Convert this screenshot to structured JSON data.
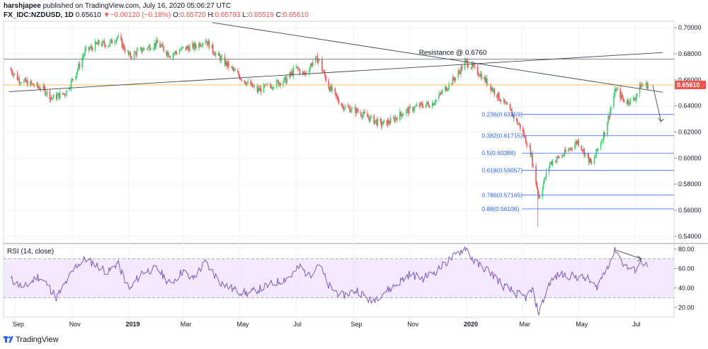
{
  "header": {
    "publisher": "harshjapee",
    "published_text": "published on TradingView.com, July 16, 2020 05:06:27 UTC",
    "symbol": "FX_IDC:NZDUSD, 1D",
    "last": "0.65610",
    "change": "▼−0.00120 (−0.18%)",
    "o_label": "O:",
    "o": "0.65720",
    "h_label": "H:",
    "h": "0.65783",
    "l_label": "L:",
    "l": "0.65519",
    "c_label": "C:",
    "c": "0.65610"
  },
  "footer": {
    "brand": "TradingView",
    "logo_icon": "tradingview-logo-icon"
  },
  "colors": {
    "up": "#26a69a",
    "up_bright": "#3cd070",
    "down": "#ef5350",
    "grid": "#f0f3fa",
    "rsi": "#7e57c2",
    "rsi_band": "#ede1fb",
    "fib": "#2962ff",
    "price_line": "#f5a623",
    "last_badge": "#ef5350"
  },
  "chart_data": [
    {
      "type": "candlestick",
      "title": "",
      "y_axis_labels": [
        "0.70000",
        "0.68000",
        "0.66000",
        "0.64000",
        "0.62000",
        "0.60000",
        "0.58000",
        "0.56000",
        "0.54000"
      ],
      "ylim": [
        0.535,
        0.705
      ],
      "x_axis_labels": [
        "Sep",
        "Nov",
        "2019",
        "Mar",
        "May",
        "Jul",
        "Sep",
        "Nov",
        "2020",
        "Mar",
        "May",
        "Jul"
      ],
      "last_price": "0.65610",
      "price_path": [
        [
          "2018-08-25",
          0.669
        ],
        [
          "2018-09-05",
          0.66
        ],
        [
          "2018-09-20",
          0.656
        ],
        [
          "2018-10-01",
          0.653
        ],
        [
          "2018-10-10",
          0.646
        ],
        [
          "2018-10-25",
          0.65
        ],
        [
          "2018-11-05",
          0.665
        ],
        [
          "2018-11-15",
          0.682
        ],
        [
          "2018-11-30",
          0.688
        ],
        [
          "2018-12-10",
          0.687
        ],
        [
          "2018-12-20",
          0.693
        ],
        [
          "2019-01-02",
          0.678
        ],
        [
          "2019-01-15",
          0.683
        ],
        [
          "2019-02-01",
          0.688
        ],
        [
          "2019-02-15",
          0.679
        ],
        [
          "2019-03-01",
          0.684
        ],
        [
          "2019-03-15",
          0.686
        ],
        [
          "2019-03-25",
          0.691
        ],
        [
          "2019-04-05",
          0.68
        ],
        [
          "2019-04-20",
          0.67
        ],
        [
          "2019-05-05",
          0.66
        ],
        [
          "2019-05-20",
          0.652
        ],
        [
          "2019-06-05",
          0.656
        ],
        [
          "2019-06-20",
          0.66
        ],
        [
          "2019-07-01",
          0.669
        ],
        [
          "2019-07-10",
          0.664
        ],
        [
          "2019-07-20",
          0.675
        ],
        [
          "2019-07-25",
          0.676
        ],
        [
          "2019-08-05",
          0.655
        ],
        [
          "2019-08-20",
          0.64
        ],
        [
          "2019-09-05",
          0.636
        ],
        [
          "2019-09-20",
          0.63
        ],
        [
          "2019-10-01",
          0.626
        ],
        [
          "2019-10-10",
          0.628
        ],
        [
          "2019-10-25",
          0.635
        ],
        [
          "2019-11-10",
          0.64
        ],
        [
          "2019-11-25",
          0.642
        ],
        [
          "2019-12-05",
          0.65
        ],
        [
          "2019-12-20",
          0.662
        ],
        [
          "2019-12-31",
          0.674
        ],
        [
          "2020-01-15",
          0.665
        ],
        [
          "2020-01-31",
          0.651
        ],
        [
          "2020-02-15",
          0.638
        ],
        [
          "2020-02-28",
          0.624
        ],
        [
          "2020-03-10",
          0.605
        ],
        [
          "2020-03-19",
          0.57
        ],
        [
          "2020-03-31",
          0.596
        ],
        [
          "2020-04-15",
          0.603
        ],
        [
          "2020-04-30",
          0.613
        ],
        [
          "2020-05-15",
          0.595
        ],
        [
          "2020-05-29",
          0.62
        ],
        [
          "2020-06-10",
          0.653
        ],
        [
          "2020-06-20",
          0.643
        ],
        [
          "2020-06-30",
          0.645
        ],
        [
          "2020-07-07",
          0.656
        ],
        [
          "2020-07-15",
          0.6561
        ]
      ],
      "spike_low": {
        "date": "2020-03-18",
        "value": 0.547
      },
      "annotations": {
        "resistance": {
          "label": "Resistance @ 0.6760",
          "value": 0.676
        },
        "horizontal_line": 0.676,
        "price_line": 0.6561,
        "descending_trendline": [
          [
            "2019-04-01",
            0.704
          ],
          [
            "2020-07-31",
            0.6505
          ]
        ],
        "ascending_trendline": [
          [
            "2018-08-25",
            0.651
          ],
          [
            "2020-07-31",
            0.681
          ]
        ],
        "fib_levels": [
          {
            "label": "0.236(0.63359)",
            "value": 0.63359
          },
          {
            "label": "0.382(0.61715)",
            "value": 0.61715
          },
          {
            "label": "0.5(0.60386)",
            "value": 0.60386
          },
          {
            "label": "0.618(0.59057)",
            "value": 0.59057
          },
          {
            "label": "0.786(0.57165)",
            "value": 0.57165
          },
          {
            "label": "0.88(0.56106)",
            "value": 0.56106
          }
        ],
        "projection_arrow": [
          [
            "2020-07-20",
            0.656
          ],
          [
            "2020-07-29",
            0.628
          ]
        ]
      }
    },
    {
      "type": "line",
      "title": "RSI (14, close)",
      "y_axis_labels": [
        "80.00",
        "60.00",
        "40.00",
        "20.00"
      ],
      "ylim": [
        10,
        85
      ],
      "bands": [
        30,
        70
      ],
      "rsi_path": [
        [
          "2018-08-25",
          50
        ],
        [
          "2018-09-10",
          40
        ],
        [
          "2018-09-25",
          52
        ],
        [
          "2018-10-05",
          44
        ],
        [
          "2018-10-15",
          30
        ],
        [
          "2018-10-25",
          45
        ],
        [
          "2018-11-05",
          62
        ],
        [
          "2018-11-15",
          70
        ],
        [
          "2018-11-30",
          62
        ],
        [
          "2018-12-10",
          56
        ],
        [
          "2018-12-20",
          66
        ],
        [
          "2019-01-02",
          38
        ],
        [
          "2019-01-15",
          56
        ],
        [
          "2019-02-01",
          60
        ],
        [
          "2019-02-15",
          44
        ],
        [
          "2019-03-01",
          58
        ],
        [
          "2019-03-10",
          48
        ],
        [
          "2019-03-25",
          66
        ],
        [
          "2019-04-10",
          46
        ],
        [
          "2019-04-25",
          38
        ],
        [
          "2019-05-10",
          34
        ],
        [
          "2019-05-25",
          40
        ],
        [
          "2019-06-10",
          46
        ],
        [
          "2019-06-25",
          52
        ],
        [
          "2019-07-05",
          62
        ],
        [
          "2019-07-15",
          52
        ],
        [
          "2019-07-25",
          66
        ],
        [
          "2019-08-05",
          42
        ],
        [
          "2019-08-20",
          32
        ],
        [
          "2019-09-05",
          38
        ],
        [
          "2019-09-20",
          26
        ],
        [
          "2019-10-01",
          34
        ],
        [
          "2019-10-15",
          42
        ],
        [
          "2019-10-31",
          54
        ],
        [
          "2019-11-15",
          50
        ],
        [
          "2019-11-30",
          58
        ],
        [
          "2019-12-15",
          70
        ],
        [
          "2019-12-31",
          82
        ],
        [
          "2020-01-10",
          66
        ],
        [
          "2020-01-25",
          58
        ],
        [
          "2020-02-10",
          42
        ],
        [
          "2020-02-25",
          34
        ],
        [
          "2020-03-05",
          30
        ],
        [
          "2020-03-12",
          38
        ],
        [
          "2020-03-19",
          14
        ],
        [
          "2020-03-31",
          46
        ],
        [
          "2020-04-10",
          54
        ],
        [
          "2020-04-25",
          52
        ],
        [
          "2020-05-10",
          50
        ],
        [
          "2020-05-20",
          40
        ],
        [
          "2020-06-01",
          62
        ],
        [
          "2020-06-10",
          80
        ],
        [
          "2020-06-20",
          62
        ],
        [
          "2020-06-30",
          58
        ],
        [
          "2020-07-08",
          68
        ],
        [
          "2020-07-15",
          61
        ]
      ],
      "divergence_arrow": [
        [
          "2020-06-10",
          79
        ],
        [
          "2020-07-08",
          70
        ]
      ]
    }
  ]
}
